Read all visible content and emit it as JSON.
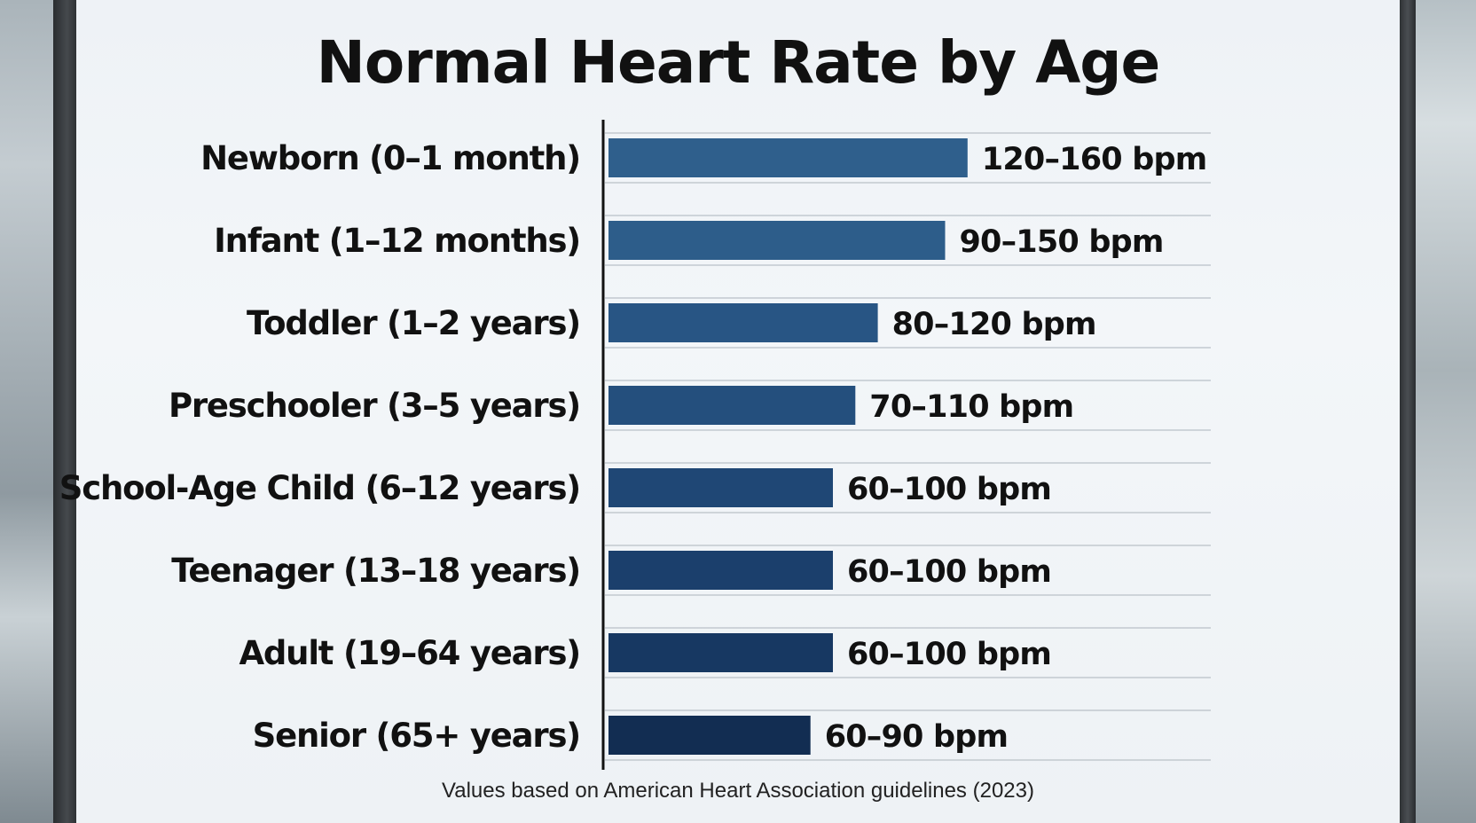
{
  "title": "Normal Heart Rate by Age",
  "footnote": "Values based on American Heart Association guidelines (2023)",
  "chart_data": {
    "type": "bar",
    "orientation": "horizontal",
    "title": "Normal Heart Rate by Age",
    "xlabel": "",
    "ylabel": "",
    "grid": "horizontal separators",
    "categories": [
      "Newborn (0–1 month)",
      "Infant (1–12 months)",
      "Toddler (1–2 years)",
      "Preschooler (3–5 years)",
      "School-Age Child (6–12 years)",
      "Teenager (13–18 years)",
      "Adult (19–64 years)",
      "Senior (65+ years)"
    ],
    "ranges": [
      [
        120,
        160
      ],
      [
        90,
        150
      ],
      [
        80,
        120
      ],
      [
        70,
        110
      ],
      [
        60,
        100
      ],
      [
        60,
        100
      ],
      [
        60,
        100
      ],
      [
        60,
        90
      ]
    ],
    "data_labels": [
      "120–160 bpm",
      "90–150 bpm",
      "80–120 bpm",
      "70–110 bpm",
      "60–100 bpm",
      "60–100 bpm",
      "60–100 bpm",
      "60–90 bpm"
    ],
    "bar_colors": [
      "#2f5f8c",
      "#2d5d8a",
      "#285584",
      "#244f7d",
      "#1f4775",
      "#1b3f6c",
      "#173862",
      "#122d52"
    ]
  }
}
